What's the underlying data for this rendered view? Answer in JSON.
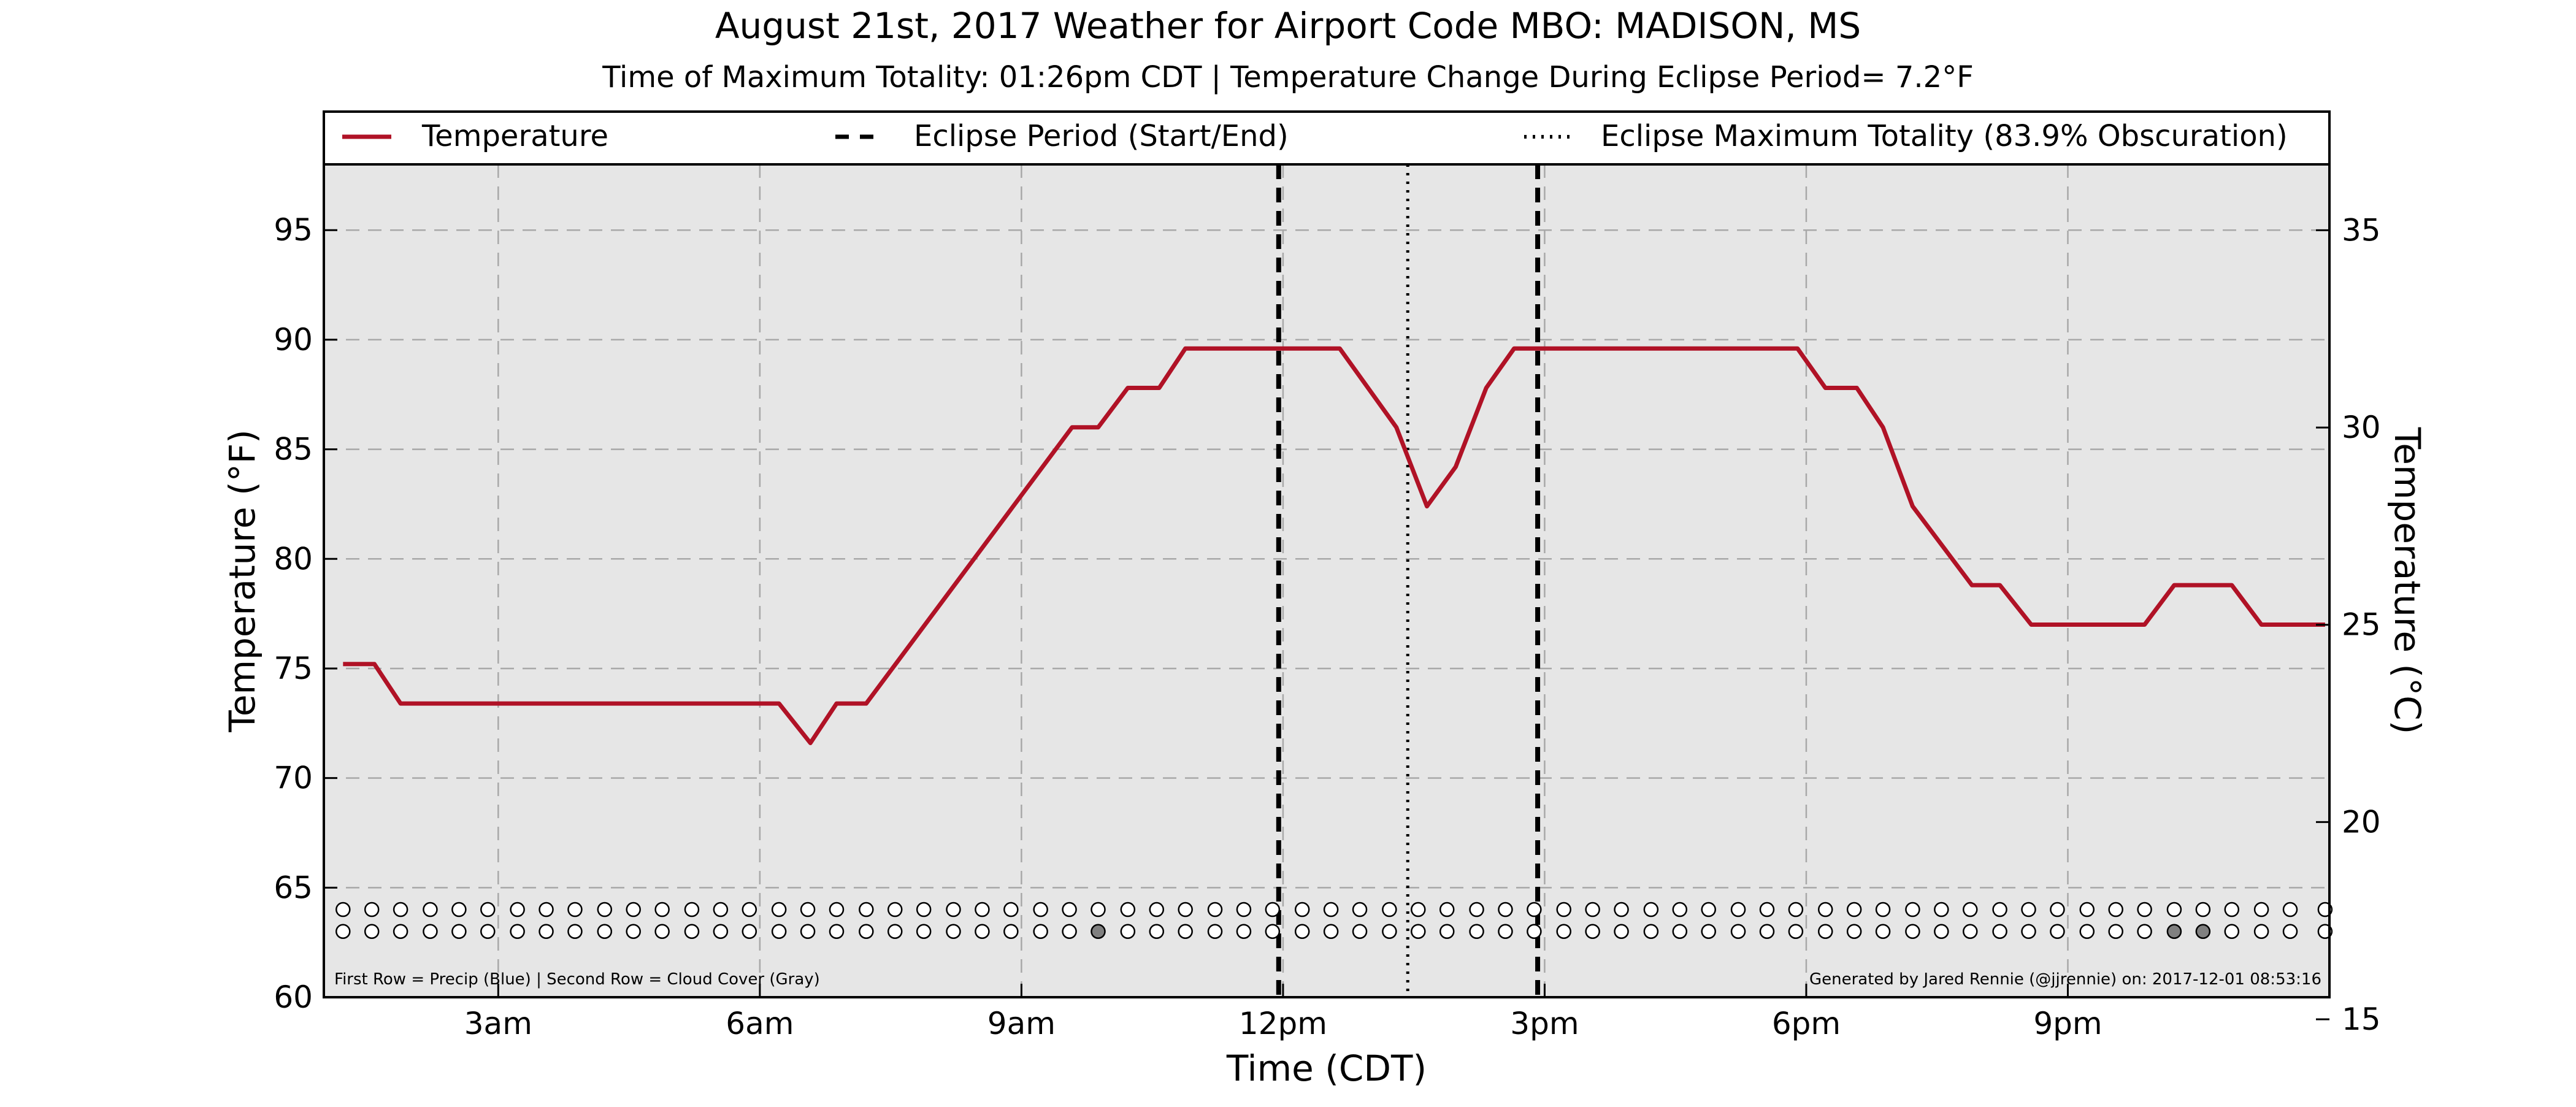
{
  "title": "August 21st, 2017 Weather for Airport Code MBO: MADISON, MS",
  "subtitle": "Time of Maximum Totality: 01:26pm CDT | Temperature Change During Eclipse Period= 7.2°F",
  "legend": {
    "temperature": "Temperature",
    "eclipse_period": "Eclipse Period (Start/End)",
    "max_totality": "Eclipse Maximum Totality (83.9% Obscuration)"
  },
  "footnote_left": "First Row = Precip (Blue) | Second Row = Cloud Cover (Gray)",
  "footnote_right": "Generated by Jared Rennie (@jjrennie) on: 2017-12-01 08:53:16",
  "colors": {
    "temperature_line": "#b01226",
    "plot_background": "#e6e6e6",
    "cloud_filled": "#808080",
    "precip_filled": "#1f5fbf"
  },
  "chart_data": {
    "type": "line",
    "xlabel": "Time (CDT)",
    "ylabel_left": "Temperature (°F)",
    "ylabel_right": "Temperature (°C)",
    "xlim": [
      1.0,
      24.0
    ],
    "ylim": [
      60,
      98
    ],
    "ylim_celsius": [
      15.56,
      36.67
    ],
    "x_ticks": [
      {
        "x": 3,
        "label": "3am"
      },
      {
        "x": 6,
        "label": "6am"
      },
      {
        "x": 9,
        "label": "9am"
      },
      {
        "x": 12,
        "label": "12pm"
      },
      {
        "x": 15,
        "label": "3pm"
      },
      {
        "x": 18,
        "label": "6pm"
      },
      {
        "x": 21,
        "label": "9pm"
      }
    ],
    "y_ticks": [
      60,
      65,
      70,
      75,
      80,
      85,
      90,
      95
    ],
    "y_ticks_celsius": [
      15,
      20,
      25,
      30,
      35
    ],
    "grid": true,
    "legend_position": "top",
    "series": [
      {
        "name": "Temperature",
        "x": [
          1.22,
          1.58,
          1.88,
          6.22,
          6.58,
          6.88,
          7.22,
          9.58,
          9.88,
          10.22,
          10.58,
          10.88,
          12.65,
          13.3,
          13.65,
          13.98,
          14.33,
          14.65,
          14.95,
          17.9,
          18.22,
          18.58,
          18.88,
          19.22,
          19.9,
          20.22,
          20.58,
          21.22,
          21.58,
          21.88,
          22.22,
          22.58,
          22.88,
          23.22,
          23.95
        ],
        "y": [
          75.2,
          75.2,
          73.4,
          73.4,
          71.6,
          73.4,
          73.4,
          86.0,
          86.0,
          87.8,
          87.8,
          89.6,
          89.6,
          86.0,
          82.4,
          84.2,
          87.8,
          89.6,
          89.6,
          89.6,
          87.8,
          87.8,
          86.0,
          82.4,
          78.8,
          78.8,
          77.0,
          77.0,
          77.0,
          77.0,
          78.8,
          78.8,
          78.8,
          77.0,
          77.0
        ]
      }
    ],
    "eclipse_start": 11.95,
    "eclipse_end": 14.92,
    "max_totality": 13.43,
    "precip_row_y": 64.0,
    "cloud_row_y": 63.0,
    "precip_x": [
      1.22,
      1.55,
      1.88,
      2.22,
      2.55,
      2.88,
      3.22,
      3.55,
      3.88,
      4.22,
      4.55,
      4.88,
      5.22,
      5.55,
      5.88,
      6.22,
      6.55,
      6.88,
      7.22,
      7.55,
      7.88,
      8.22,
      8.55,
      8.88,
      9.22,
      9.55,
      9.88,
      10.22,
      10.55,
      10.88,
      11.22,
      11.55,
      11.88,
      12.22,
      12.55,
      12.88,
      13.22,
      13.55,
      13.88,
      14.22,
      14.55,
      14.88,
      15.22,
      15.55,
      15.88,
      16.22,
      16.55,
      16.88,
      17.22,
      17.55,
      17.88,
      18.22,
      18.55,
      18.88,
      19.22,
      19.55,
      19.88,
      20.22,
      20.55,
      20.88,
      21.22,
      21.55,
      21.88,
      22.22,
      22.55,
      22.88,
      23.22,
      23.55,
      23.95
    ],
    "cloud_x": [
      1.22,
      1.55,
      1.88,
      2.22,
      2.55,
      2.88,
      3.22,
      3.55,
      3.88,
      4.22,
      4.55,
      4.88,
      5.22,
      5.55,
      5.88,
      6.22,
      6.55,
      6.88,
      7.22,
      7.55,
      7.88,
      8.22,
      8.55,
      8.88,
      9.22,
      9.55,
      9.88,
      10.22,
      10.55,
      10.88,
      11.22,
      11.55,
      11.88,
      12.22,
      12.55,
      12.88,
      13.22,
      13.55,
      13.88,
      14.22,
      14.55,
      14.88,
      15.22,
      15.55,
      15.88,
      16.22,
      16.55,
      16.88,
      17.22,
      17.55,
      17.88,
      18.22,
      18.55,
      18.88,
      19.22,
      19.55,
      19.88,
      20.22,
      20.55,
      20.88,
      21.22,
      21.55,
      21.88,
      22.22,
      22.55,
      22.88,
      23.22,
      23.55,
      23.95
    ],
    "cloud_filled_x": [
      9.88,
      22.22,
      22.55
    ]
  }
}
